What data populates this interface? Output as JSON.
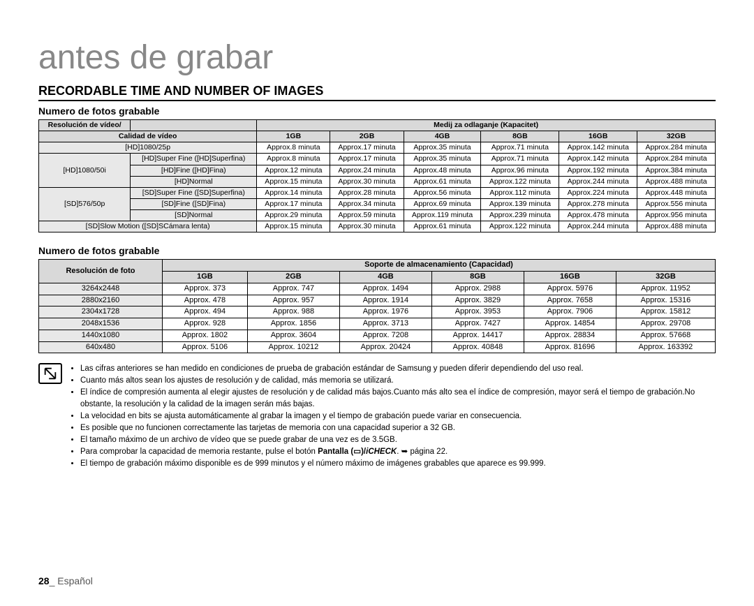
{
  "title": "antes de grabar",
  "section_title": "RECORDABLE TIME AND NUMBER OF IMAGES",
  "table1": {
    "subtitle": "Numero de fotos grabable",
    "header_res": "Resolución de vídeo/",
    "header_qual": "Calidad de vídeo",
    "header_media": "Medij za odlaganje (Kapacitet)",
    "caps": [
      "1GB",
      "2GB",
      "4GB",
      "8GB",
      "16GB",
      "32GB"
    ],
    "rows": [
      {
        "res": "[HD]1080/25p",
        "qual": "",
        "v": [
          "Approx.8 minuta",
          "Approx.17 minuta",
          "Approx.35 minuta",
          "Approx.71 minuta",
          "Approx.142 minuta",
          "Approx.284 minuta"
        ]
      },
      {
        "res": "[HD]1080/50i",
        "qual": "[HD]Super Fine ([HD]Superfina)",
        "v": [
          "Approx.8 minuta",
          "Approx.17 minuta",
          "Approx.35 minuta",
          "Approx.71 minuta",
          "Approx.142 minuta",
          "Approx.284 minuta"
        ]
      },
      {
        "res": "",
        "qual": "[HD]Fine ([HD]Fina)",
        "v": [
          "Approx.12 minuta",
          "Approx.24 minuta",
          "Approx.48 minuta",
          "Approx.96 minuta",
          "Approx.192 minuta",
          "Approx.384 minuta"
        ]
      },
      {
        "res": "",
        "qual": "[HD]Normal",
        "v": [
          "Approx.15 minuta",
          "Approx.30 minuta",
          "Approx.61 minuta",
          "Approx.122 minuta",
          "Approx.244 minuta",
          "Approx.488 minuta"
        ]
      },
      {
        "res": "[SD]576/50p",
        "qual": "[SD]Super Fine ([SD]Superfina)",
        "v": [
          "Approx.14 minuta",
          "Approx.28 minuta",
          "Approx.56 minuta",
          "Approx.112 minuta",
          "Approx.224 minuta",
          "Approx.448 minuta"
        ]
      },
      {
        "res": "",
        "qual": "[SD]Fine ([SD]Fina)",
        "v": [
          "Approx.17 minuta",
          "Approx.34 minuta",
          "Approx.69 minuta",
          "Approx.139 minuta",
          "Approx.278 minuta",
          "Approx.556 minuta"
        ]
      },
      {
        "res": "",
        "qual": "[SD]Normal",
        "v": [
          "Approx.29 minuta",
          "Approx.59 minuta",
          "Approx.119 minuta",
          "Approx.239 minuta",
          "Approx.478 minuta",
          "Approx.956 minuta"
        ]
      },
      {
        "res": "[SD]Slow Motion ([SD]SCámara lenta)",
        "qual": "",
        "v": [
          "Approx.15 minuta",
          "Approx.30 minuta",
          "Approx.61 minuta",
          "Approx.122 minuta",
          "Approx.244 minuta",
          "Approx.488 minuta"
        ]
      }
    ]
  },
  "table2": {
    "subtitle": "Numero de fotos grabable",
    "header_res": "Resolución de foto",
    "header_media": "Soporte de almacenamiento (Capacidad)",
    "caps": [
      "1GB",
      "2GB",
      "4GB",
      "8GB",
      "16GB",
      "32GB"
    ],
    "rows": [
      {
        "res": "3264x2448",
        "v": [
          "Approx. 373",
          "Approx. 747",
          "Approx. 1494",
          "Approx. 2988",
          "Approx. 5976",
          "Approx. 11952"
        ]
      },
      {
        "res": "2880x2160",
        "v": [
          "Approx. 478",
          "Approx. 957",
          "Approx. 1914",
          "Approx. 3829",
          "Approx. 7658",
          "Approx. 15316"
        ]
      },
      {
        "res": "2304x1728",
        "v": [
          "Approx. 494",
          "Approx. 988",
          "Approx. 1976",
          "Approx. 3953",
          "Approx. 7906",
          "Approx. 15812"
        ]
      },
      {
        "res": "2048x1536",
        "v": [
          "Approx. 928",
          "Approx. 1856",
          "Approx. 3713",
          "Approx. 7427",
          "Approx. 14854",
          "Approx. 29708"
        ]
      },
      {
        "res": "1440x1080",
        "v": [
          "Approx. 1802",
          "Approx. 3604",
          "Approx. 7208",
          "Approx. 14417",
          "Approx. 28834",
          "Approx. 57668"
        ]
      },
      {
        "res": "640x480",
        "v": [
          "Approx. 5106",
          "Approx. 10212",
          "Approx. 20424",
          "Approx. 40848",
          "Approx. 81696",
          "Approx. 163392"
        ]
      }
    ]
  },
  "notes": [
    "Las cifras anteriores se han medido en condiciones de prueba de grabación estándar de Samsung y pueden diferir dependiendo del uso real.",
    "Cuanto más altos sean los ajustes de resolución y de calidad, más memoria se utilizará.",
    "El índice de compresión aumenta al elegir ajustes de resolución y de calidad más bajos.Cuanto más alto sea el índice de compresión, mayor será el tiempo de grabación.No obstante, la resolución y la calidad de la imagen serán más bajas.",
    "La velocidad en bits se ajusta automáticamente al grabar la imagen y el tiempo de grabación puede variar en consecuencia.",
    "Es posible que no funcionen correctamente las tarjetas de memoria con una capacidad superior a 32 GB.",
    "El tamaño máximo de un archivo de vídeo que se puede grabar de una vez es de 3.5GB."
  ],
  "note7_a": "Para comprobar la capacidad de memoria restante, pulse el botón ",
  "note7_b": "Pantalla (▭)/",
  "note7_c": "iCHECK",
  "note7_d": ". ➥ página 22.",
  "note8": "El tiempo de grabación máximo disponible es de 999 minutos y el número máximo de imágenes grabables que aparece es 99.999.",
  "footer_page": "28",
  "footer_lang": "Español"
}
